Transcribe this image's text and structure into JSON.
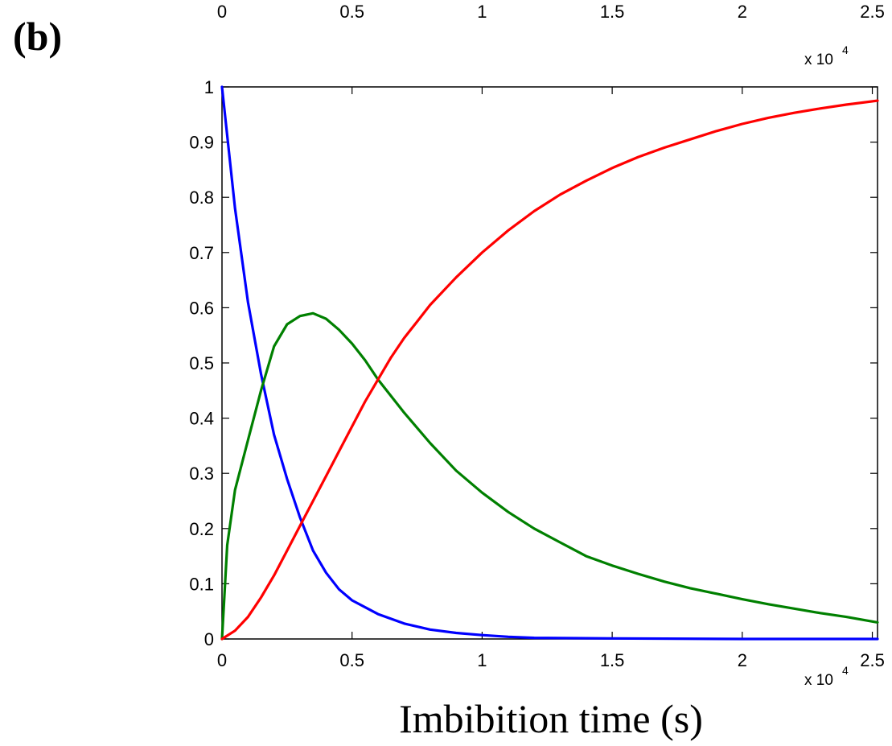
{
  "panel_label": "(b)",
  "top_axis": {
    "tick_labels": [
      "0",
      "0.5",
      "1",
      "1.5",
      "2",
      "2.5"
    ],
    "exponent_base": "x 10",
    "exponent_power": "4"
  },
  "chart_data": {
    "type": "line",
    "xlabel": "Imbibition time (s)",
    "ylabel": "",
    "xlim": [
      0,
      25200
    ],
    "ylim": [
      0,
      1
    ],
    "x_multiplier_label": "x 10",
    "x_multiplier_power": "4",
    "x_tick_values": [
      0,
      5000,
      10000,
      15000,
      20000,
      25000
    ],
    "x_tick_labels": [
      "0",
      "0.5",
      "1",
      "1.5",
      "2",
      "2.5"
    ],
    "y_tick_values": [
      0,
      0.1,
      0.2,
      0.3,
      0.4,
      0.5,
      0.6,
      0.7,
      0.8,
      0.9,
      1
    ],
    "y_tick_labels": [
      "0",
      "0.1",
      "0.2",
      "0.3",
      "0.4",
      "0.5",
      "0.6",
      "0.7",
      "0.8",
      "0.9",
      "1"
    ],
    "grid": false,
    "series": [
      {
        "color": "#0000ff",
        "x": [
          0,
          500,
          1000,
          1500,
          2000,
          2500,
          3000,
          3500,
          4000,
          4500,
          5000,
          6000,
          7000,
          8000,
          9000,
          10000,
          11000,
          12000,
          15000,
          20000,
          25200
        ],
        "y": [
          1.0,
          0.78,
          0.61,
          0.48,
          0.37,
          0.29,
          0.22,
          0.16,
          0.12,
          0.09,
          0.07,
          0.045,
          0.028,
          0.017,
          0.011,
          0.007,
          0.004,
          0.002,
          0.001,
          0.0,
          0.0
        ]
      },
      {
        "color": "#008000",
        "x": [
          0,
          200,
          500,
          1000,
          1500,
          2000,
          2500,
          3000,
          3500,
          4000,
          4500,
          5000,
          5500,
          6000,
          7000,
          8000,
          9000,
          10000,
          11000,
          12000,
          13000,
          14000,
          15000,
          16000,
          17000,
          18000,
          19000,
          20000,
          21000,
          22000,
          23000,
          24000,
          25200
        ],
        "y": [
          0.0,
          0.17,
          0.27,
          0.36,
          0.45,
          0.53,
          0.57,
          0.585,
          0.59,
          0.58,
          0.56,
          0.535,
          0.505,
          0.47,
          0.41,
          0.355,
          0.305,
          0.265,
          0.23,
          0.2,
          0.175,
          0.15,
          0.133,
          0.118,
          0.104,
          0.092,
          0.082,
          0.072,
          0.063,
          0.055,
          0.047,
          0.04,
          0.03
        ]
      },
      {
        "color": "#ff0000",
        "x": [
          0,
          500,
          1000,
          1500,
          2000,
          2500,
          3000,
          3500,
          4000,
          4500,
          5000,
          5500,
          6000,
          6500,
          7000,
          7500,
          8000,
          9000,
          10000,
          11000,
          12000,
          13000,
          14000,
          15000,
          16000,
          17000,
          18000,
          19000,
          20000,
          21000,
          22000,
          23000,
          24000,
          25200
        ],
        "y": [
          0.0,
          0.015,
          0.04,
          0.075,
          0.115,
          0.16,
          0.205,
          0.25,
          0.295,
          0.34,
          0.385,
          0.43,
          0.47,
          0.51,
          0.545,
          0.575,
          0.605,
          0.655,
          0.7,
          0.74,
          0.775,
          0.805,
          0.83,
          0.853,
          0.873,
          0.89,
          0.905,
          0.92,
          0.933,
          0.944,
          0.953,
          0.961,
          0.968,
          0.975
        ]
      }
    ]
  }
}
